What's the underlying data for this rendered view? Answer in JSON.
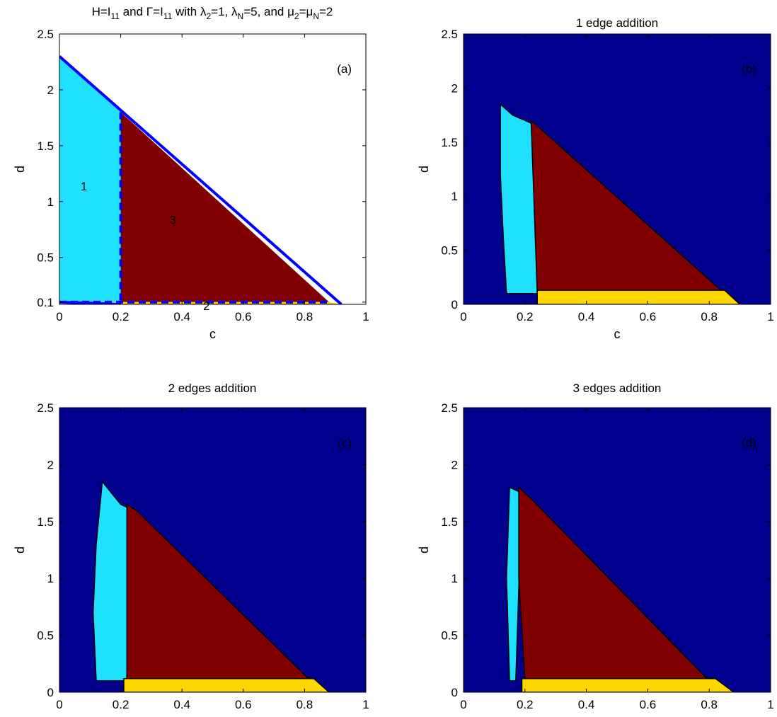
{
  "colors": {
    "blue": "#00008F",
    "cyan": "#20E0FF",
    "maroon": "#800000",
    "yellow": "#FFD700",
    "edge": "#000000",
    "line": "#0000FF",
    "white": "#FFFFFF"
  },
  "chart_data": [
    {
      "id": "a",
      "type": "area",
      "title_parts": {
        "p1": "H=I",
        "s1": "11",
        "p2": " and Γ=I",
        "s2": "11",
        "p3": " with λ",
        "s3": "2",
        "p4": "=1, λ",
        "s4": "N",
        "p5": "=5, and μ",
        "s5": "2",
        "p6": "=μ",
        "s6": "N",
        "p7": "=2"
      },
      "xlabel": "c",
      "ylabel": "d",
      "panel_label": "(a)",
      "xlim": [
        0,
        1
      ],
      "ylim": [
        0.08,
        2.5
      ],
      "xticks": [
        0,
        0.2,
        0.4,
        0.6,
        0.8,
        1
      ],
      "xtick_labels": [
        "0",
        "0.2",
        "0.4",
        "0.6",
        "0.8",
        "1"
      ],
      "yticks": [
        0.1,
        0.5,
        1,
        1.5,
        2,
        2.5
      ],
      "ytick_labels": [
        "0.1",
        "0.5",
        "1",
        "1.5",
        "2",
        "2.5"
      ],
      "regions": [
        {
          "label": "1",
          "color": "cyan",
          "label_at": [
            0.08,
            1.1
          ],
          "polygon": [
            [
              0,
              2.3
            ],
            [
              0.2,
              1.8
            ],
            [
              0.2,
              0.1
            ],
            [
              0,
              0.1
            ]
          ]
        },
        {
          "label": "3",
          "color": "maroon",
          "label_at": [
            0.37,
            0.8
          ],
          "polygon": [
            [
              0.2,
              1.8
            ],
            [
              0.88,
              0.1
            ],
            [
              0.2,
              0.1
            ]
          ]
        },
        {
          "label": "2",
          "color": "yellow",
          "label_at": [
            0.48,
            0.03
          ],
          "polygon": [
            [
              0.2,
              0.1
            ],
            [
              0.88,
              0.1
            ],
            [
              0.92,
              0.08
            ],
            [
              0.2,
              0.08
            ]
          ]
        }
      ],
      "boundary_lines": [
        {
          "style": "solid",
          "points": [
            [
              0,
              2.3
            ],
            [
              0.92,
              0.08
            ]
          ]
        },
        {
          "style": "solid",
          "points": [
            [
              0,
              0.1
            ],
            [
              0.2,
              0.08
            ]
          ]
        },
        {
          "style": "dashed",
          "points": [
            [
              0.2,
              1.8
            ],
            [
              0.2,
              0.08
            ]
          ]
        },
        {
          "style": "dashed",
          "points": [
            [
              0,
              0.1
            ],
            [
              0.88,
              0.1
            ]
          ]
        }
      ]
    },
    {
      "id": "b",
      "type": "heatmap",
      "title": "1 edge addition",
      "xlabel": "c",
      "ylabel": "d",
      "panel_label": "(b)",
      "xlim": [
        0,
        1
      ],
      "ylim": [
        0,
        2.5
      ],
      "xticks": [
        0,
        0.2,
        0.4,
        0.6,
        0.8,
        1
      ],
      "xtick_labels": [
        "0",
        "0.2",
        "0.4",
        "0.6",
        "0.8",
        "1"
      ],
      "yticks": [
        0,
        0.5,
        1,
        1.5,
        2,
        2.5
      ],
      "ytick_labels": [
        "0",
        "0.5",
        "1",
        "1.5",
        "2",
        "2.5"
      ],
      "regions": [
        {
          "color": "cyan",
          "polygon": [
            [
              0.12,
              1.85
            ],
            [
              0.16,
              1.75
            ],
            [
              0.2,
              1.7
            ],
            [
              0.24,
              1.65
            ],
            [
              0.24,
              0.1
            ],
            [
              0.14,
              0.1
            ],
            [
              0.13,
              0.6
            ],
            [
              0.12,
              1.2
            ]
          ]
        },
        {
          "color": "maroon",
          "polygon": [
            [
              0.22,
              1.7
            ],
            [
              0.26,
              1.6
            ],
            [
              0.85,
              0.1
            ],
            [
              0.24,
              0.1
            ]
          ]
        },
        {
          "color": "yellow",
          "polygon": [
            [
              0.24,
              0.13
            ],
            [
              0.85,
              0.13
            ],
            [
              0.9,
              0.0
            ],
            [
              0.24,
              0.0
            ]
          ]
        }
      ]
    },
    {
      "id": "c",
      "type": "heatmap",
      "title": "2 edges addition",
      "xlabel": "c",
      "ylabel": "d",
      "panel_label": "(c)",
      "xlim": [
        0,
        1
      ],
      "ylim": [
        0,
        2.5
      ],
      "xticks": [
        0,
        0.2,
        0.4,
        0.6,
        0.8,
        1
      ],
      "xtick_labels": [
        "0",
        "0.2",
        "0.4",
        "0.6",
        "0.8",
        "1"
      ],
      "yticks": [
        0,
        0.5,
        1,
        1.5,
        2,
        2.5
      ],
      "ytick_labels": [
        "0",
        "0.5",
        "1",
        "1.5",
        "2",
        "2.5"
      ],
      "regions": [
        {
          "color": "cyan",
          "polygon": [
            [
              0.14,
              1.85
            ],
            [
              0.2,
              1.65
            ],
            [
              0.24,
              1.6
            ],
            [
              0.23,
              0.1
            ],
            [
              0.12,
              0.1
            ],
            [
              0.11,
              0.7
            ],
            [
              0.12,
              1.3
            ]
          ]
        },
        {
          "color": "maroon",
          "polygon": [
            [
              0.22,
              1.65
            ],
            [
              0.25,
              1.6
            ],
            [
              0.82,
              0.1
            ],
            [
              0.22,
              0.1
            ]
          ]
        },
        {
          "color": "yellow",
          "polygon": [
            [
              0.21,
              0.12
            ],
            [
              0.83,
              0.12
            ],
            [
              0.88,
              0.0
            ],
            [
              0.21,
              0.0
            ]
          ]
        }
      ]
    },
    {
      "id": "d",
      "type": "heatmap",
      "title": "3 edges addition",
      "xlabel": "c",
      "ylabel": "d",
      "panel_label": "(d)",
      "xlim": [
        0,
        1
      ],
      "ylim": [
        0,
        2.5
      ],
      "xticks": [
        0,
        0.2,
        0.4,
        0.6,
        0.8,
        1
      ],
      "xtick_labels": [
        "0",
        "0.2",
        "0.4",
        "0.6",
        "0.8",
        "1"
      ],
      "yticks": [
        0,
        0.5,
        1,
        1.5,
        2,
        2.5
      ],
      "ytick_labels": [
        "0",
        "0.5",
        "1",
        "1.5",
        "2",
        "2.5"
      ],
      "regions": [
        {
          "color": "cyan",
          "polygon": [
            [
              0.15,
              1.8
            ],
            [
              0.19,
              1.75
            ],
            [
              0.17,
              0.1
            ],
            [
              0.15,
              0.1
            ],
            [
              0.14,
              1.0
            ]
          ]
        },
        {
          "color": "maroon",
          "polygon": [
            [
              0.18,
              1.8
            ],
            [
              0.22,
              1.7
            ],
            [
              0.8,
              0.1
            ],
            [
              0.2,
              0.1
            ],
            [
              0.18,
              1.0
            ]
          ]
        },
        {
          "color": "yellow",
          "polygon": [
            [
              0.19,
              0.12
            ],
            [
              0.82,
              0.12
            ],
            [
              0.88,
              0.0
            ],
            [
              0.19,
              0.0
            ]
          ]
        }
      ]
    }
  ]
}
